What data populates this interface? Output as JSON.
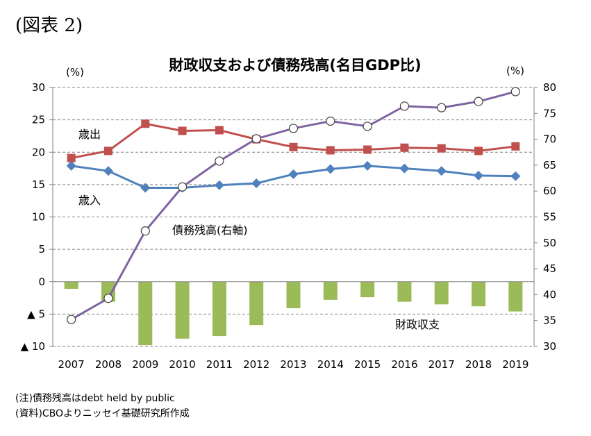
{
  "figure_label": "(図表 2)",
  "notes": {
    "note": "(注)債務残高はdebt held by public",
    "source": "(資料)CBOよりニッセイ基礎研究所作成"
  },
  "chart_data": {
    "type": "bar+line",
    "title": "財政収支および債務残高(名目GDP比)",
    "left_unit": "(%)",
    "right_unit": "(%)",
    "categories": [
      "2007",
      "2008",
      "2009",
      "2010",
      "2011",
      "2012",
      "2013",
      "2014",
      "2015",
      "2016",
      "2017",
      "2018",
      "2019"
    ],
    "left_axis": {
      "ylim": [
        -10,
        30
      ],
      "ticks": [
        30,
        25,
        20,
        15,
        10,
        5,
        0,
        -5,
        -10
      ],
      "tick_labels": [
        "30",
        "25",
        "20",
        "15",
        "10",
        "5",
        "0",
        "▲ 5",
        "▲ 10"
      ]
    },
    "right_axis": {
      "ylim": [
        30,
        80
      ],
      "ticks": [
        80,
        75,
        70,
        65,
        60,
        55,
        50,
        45,
        40,
        35,
        30
      ],
      "tick_labels": [
        "80",
        "75",
        "70",
        "65",
        "60",
        "55",
        "50",
        "45",
        "40",
        "35",
        "30"
      ]
    },
    "grid": "horizontal dashed",
    "series": [
      {
        "name": "歳出",
        "axis": "left",
        "kind": "line",
        "marker": "square",
        "color": "#c0504d",
        "values": [
          19.1,
          20.2,
          24.4,
          23.3,
          23.4,
          22.0,
          20.8,
          20.3,
          20.4,
          20.7,
          20.6,
          20.2,
          20.9
        ]
      },
      {
        "name": "歳入",
        "axis": "left",
        "kind": "line",
        "marker": "diamond",
        "color": "#4f81bd",
        "values": [
          17.9,
          17.1,
          14.5,
          14.5,
          14.9,
          15.2,
          16.6,
          17.4,
          17.9,
          17.5,
          17.1,
          16.4,
          16.3
        ]
      },
      {
        "name": "債務残高(右軸)",
        "axis": "right",
        "kind": "line",
        "marker": "open-circle",
        "color": "#8064a2",
        "values": [
          35.2,
          39.3,
          52.3,
          60.8,
          65.8,
          70.1,
          72.1,
          73.5,
          72.5,
          76.4,
          76.1,
          77.3,
          79.2
        ]
      },
      {
        "name": "財政収支",
        "axis": "left",
        "kind": "bar",
        "color": "#9bbb59",
        "values": [
          -1.1,
          -3.1,
          -9.8,
          -8.8,
          -8.4,
          -6.7,
          -4.1,
          -2.8,
          -2.4,
          -3.1,
          -3.5,
          -3.8,
          -4.6
        ]
      }
    ]
  }
}
